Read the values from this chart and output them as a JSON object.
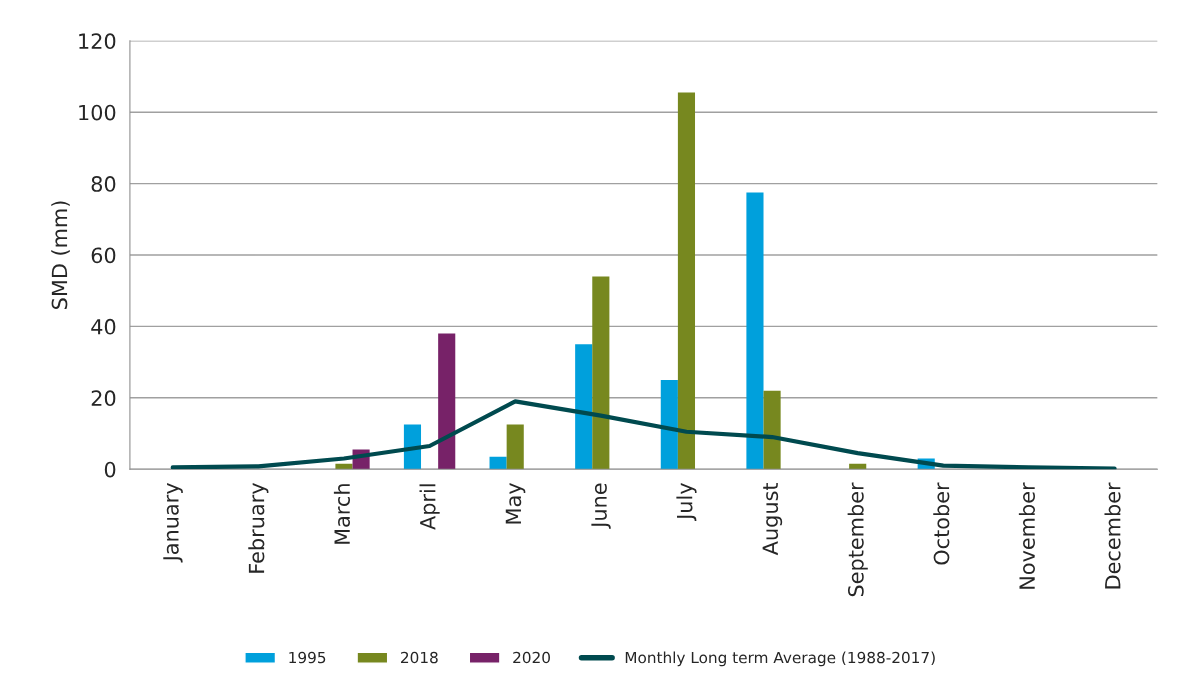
{
  "chart_data": {
    "type": "bar",
    "ylabel": "SMD (mm)",
    "categories": [
      "January",
      "February",
      "March",
      "April",
      "May",
      "June",
      "July",
      "August",
      "September",
      "October",
      "November",
      "December"
    ],
    "series": [
      {
        "name": "1995",
        "color": "#00a0dc",
        "values": [
          null,
          null,
          null,
          12.5,
          3.5,
          35,
          25,
          77.5,
          null,
          3,
          null,
          null
        ]
      },
      {
        "name": "2018",
        "color": "#77881f",
        "values": [
          null,
          null,
          1.5,
          null,
          12.5,
          54,
          105.5,
          22,
          1.5,
          null,
          null,
          null
        ]
      },
      {
        "name": "2020",
        "color": "#772268",
        "values": [
          null,
          null,
          5.5,
          38,
          null,
          null,
          null,
          null,
          null,
          null,
          null,
          null
        ]
      },
      {
        "name": "Monthly Long term Average (1988-2017)",
        "type": "line",
        "color": "#004a4f",
        "values": [
          0.5,
          0.8,
          3,
          6.5,
          19,
          15,
          10.5,
          9,
          4.5,
          1,
          0.5,
          0.2
        ]
      }
    ],
    "ylim": [
      0,
      120
    ],
    "yticks": [
      0,
      20,
      40,
      60,
      80,
      100,
      120
    ],
    "grid": "y",
    "legend": "bottom",
    "marker": "none",
    "line_style": "solid"
  }
}
